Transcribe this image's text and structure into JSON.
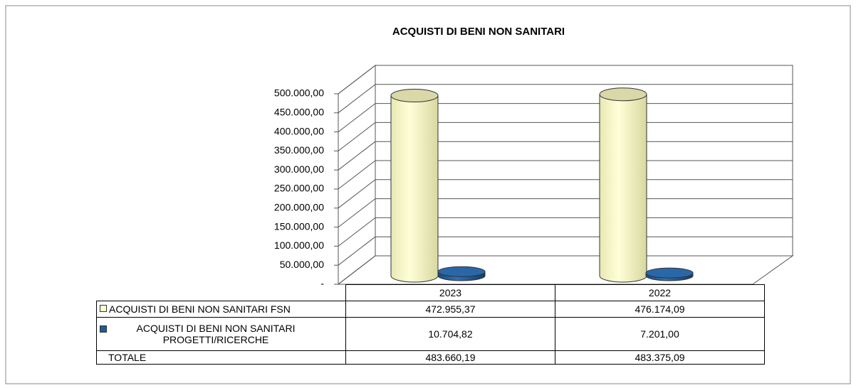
{
  "chart_data": {
    "type": "bar",
    "title": "ACQUISTI DI BENI NON SANITARI",
    "categories": [
      "2023",
      "2022"
    ],
    "series": [
      {
        "name": "ACQUISTI DI BENI NON SANITARI FSN",
        "color": "#ffffcc",
        "values": [
          472955.37,
          476174.09
        ],
        "value_labels": [
          "472.955,37",
          "476.174,09"
        ]
      },
      {
        "name": "ACQUISTI DI BENI NON SANITARI PROGETTI/RICERCHE",
        "color": "#1f5c99",
        "values": [
          10704.82,
          7201.0
        ],
        "value_labels": [
          "10.704,82",
          "7.201,00"
        ]
      }
    ],
    "totals": {
      "name": "TOTALE",
      "values": [
        483660.19,
        483375.09
      ],
      "value_labels": [
        "483.660,19",
        "483.375,09"
      ]
    },
    "ylim": [
      0,
      500000
    ],
    "yticks": [
      {
        "value": 0,
        "label": "-"
      },
      {
        "value": 50000,
        "label": "50.000,00"
      },
      {
        "value": 100000,
        "label": "100.000,00"
      },
      {
        "value": 150000,
        "label": "150.000,00"
      },
      {
        "value": 200000,
        "label": "200.000,00"
      },
      {
        "value": 250000,
        "label": "250.000,00"
      },
      {
        "value": 300000,
        "label": "300.000,00"
      },
      {
        "value": 350000,
        "label": "350.000,00"
      },
      {
        "value": 400000,
        "label": "400.000,00"
      },
      {
        "value": 450000,
        "label": "450.000,00"
      },
      {
        "value": 500000,
        "label": "500.000,00"
      }
    ],
    "grid": true
  }
}
